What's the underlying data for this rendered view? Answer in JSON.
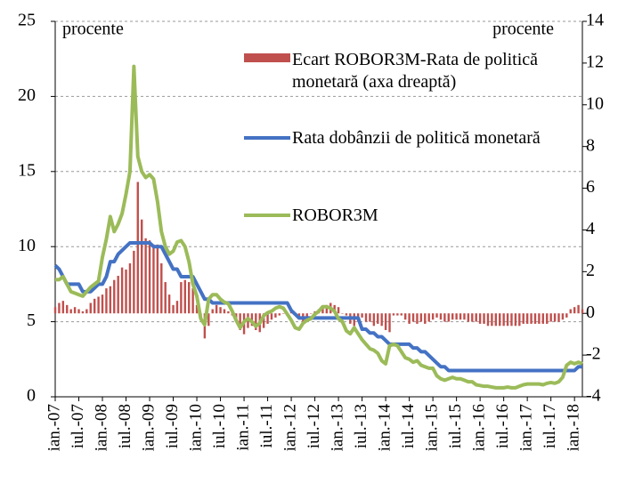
{
  "chart_data": {
    "type": "bar_line",
    "left_unit": "procente",
    "right_unit": "procente",
    "categories": [
      "ian.-07",
      null,
      null,
      null,
      null,
      null,
      "iul.-07",
      null,
      null,
      null,
      null,
      null,
      "ian.-08",
      null,
      null,
      null,
      null,
      null,
      "iul.-08",
      null,
      null,
      null,
      null,
      null,
      "ian.-09",
      null,
      null,
      null,
      null,
      null,
      "iul.-09",
      null,
      null,
      null,
      null,
      null,
      "ian.-10",
      null,
      null,
      null,
      null,
      null,
      "iul.-10",
      null,
      null,
      null,
      null,
      null,
      "ian.-11",
      null,
      null,
      null,
      null,
      null,
      "iul.-11",
      null,
      null,
      null,
      null,
      null,
      "ian.-12",
      null,
      null,
      null,
      null,
      null,
      "iul.-12",
      null,
      null,
      null,
      null,
      null,
      "ian.-13",
      null,
      null,
      null,
      null,
      null,
      "iul.-13",
      null,
      null,
      null,
      null,
      null,
      "ian.-14",
      null,
      null,
      null,
      null,
      null,
      "iul.-14",
      null,
      null,
      null,
      null,
      null,
      "ian.-15",
      null,
      null,
      null,
      null,
      null,
      "iul.-15",
      null,
      null,
      null,
      null,
      null,
      "ian.-16",
      null,
      null,
      null,
      null,
      null,
      "iul.-16",
      null,
      null,
      null,
      null,
      null,
      "ian.-17",
      null,
      null,
      null,
      null,
      null,
      "iul.-17",
      null,
      null,
      null,
      null,
      null,
      "ian.-18",
      null,
      null
    ],
    "series": [
      {
        "name": "Ecart ROBOR3M-Rata de politică monetară (axa dreaptă)",
        "kind": "bar",
        "axis": "y2",
        "color": "#c0504d",
        "values": [
          0.3,
          0.5,
          0.6,
          0.4,
          0.2,
          0.3,
          0.2,
          0.1,
          0.2,
          0.5,
          0.7,
          0.8,
          0.9,
          1.2,
          1.3,
          1.6,
          1.8,
          2.2,
          2.1,
          2.4,
          3.0,
          6.3,
          4.5,
          3.6,
          3.5,
          3.3,
          3.3,
          2.4,
          1.5,
          0.9,
          0.4,
          0.6,
          1.5,
          1.6,
          1.5,
          1.2,
          0.4,
          -0.3,
          -1.2,
          -0.6,
          0.2,
          0.4,
          0.3,
          0.2,
          0.1,
          -0.1,
          -0.4,
          -0.8,
          -1.0,
          -0.7,
          -0.6,
          -0.8,
          -0.9,
          -0.7,
          -0.5,
          -0.3,
          -0.2,
          -0.1,
          0,
          0,
          0.1,
          -0.1,
          -0.3,
          -0.4,
          -0.2,
          0,
          0.1,
          0.2,
          0.3,
          0.4,
          0.5,
          0.4,
          0.3,
          0,
          -0.1,
          -0.5,
          -0.6,
          -0.4,
          -0.2,
          -0.4,
          -0.4,
          -0.6,
          -0.5,
          -0.6,
          -0.8,
          -0.9,
          -0.1,
          -0.1,
          -0.1,
          -0.3,
          -0.5,
          -0.4,
          -0.5,
          -0.4,
          -0.5,
          -0.4,
          -0.3,
          -0.2,
          -0.3,
          -0.4,
          -0.4,
          -0.3,
          -0.3,
          -0.3,
          -0.3,
          -0.4,
          -0.4,
          -0.4,
          -0.5,
          -0.5,
          -0.6,
          -0.6,
          -0.6,
          -0.6,
          -0.6,
          -0.6,
          -0.6,
          -0.6,
          -0.6,
          -0.5,
          -0.5,
          -0.5,
          -0.5,
          -0.5,
          -0.5,
          -0.5,
          -0.4,
          -0.4,
          -0.4,
          -0.3,
          -0.2,
          0.2,
          0.3,
          0.4,
          0.2
        ]
      },
      {
        "name": "Rata dobânzii de politică monetară",
        "kind": "line",
        "axis": "y",
        "color": "#4472c4",
        "values": [
          8.75,
          8.5,
          8.0,
          7.5,
          7.5,
          7.5,
          7.5,
          7.0,
          7.0,
          7.0,
          7.25,
          7.5,
          7.5,
          8.0,
          9.0,
          9.0,
          9.5,
          9.75,
          10.0,
          10.25,
          10.25,
          10.25,
          10.25,
          10.25,
          10.25,
          10.0,
          10.0,
          10.0,
          9.5,
          9.0,
          8.5,
          8.5,
          8.0,
          8.0,
          8.0,
          8.0,
          7.5,
          7.0,
          6.5,
          6.5,
          6.25,
          6.25,
          6.25,
          6.25,
          6.25,
          6.25,
          6.25,
          6.25,
          6.25,
          6.25,
          6.25,
          6.25,
          6.25,
          6.25,
          6.25,
          6.25,
          6.25,
          6.25,
          6.25,
          6.25,
          5.75,
          5.5,
          5.25,
          5.25,
          5.25,
          5.25,
          5.25,
          5.25,
          5.25,
          5.25,
          5.25,
          5.25,
          5.25,
          5.25,
          5.25,
          5.25,
          5.25,
          5.25,
          4.5,
          4.5,
          4.25,
          4.25,
          4.0,
          4.0,
          3.75,
          3.5,
          3.5,
          3.5,
          3.5,
          3.5,
          3.5,
          3.25,
          3.25,
          3.0,
          3.0,
          2.75,
          2.5,
          2.25,
          2.0,
          2.0,
          1.75,
          1.75,
          1.75,
          1.75,
          1.75,
          1.75,
          1.75,
          1.75,
          1.75,
          1.75,
          1.75,
          1.75,
          1.75,
          1.75,
          1.75,
          1.75,
          1.75,
          1.75,
          1.75,
          1.75,
          1.75,
          1.75,
          1.75,
          1.75,
          1.75,
          1.75,
          1.75,
          1.75,
          1.75,
          1.75,
          1.75,
          1.75,
          1.75,
          2.0,
          2.0
        ]
      },
      {
        "name": "ROBOR3M",
        "kind": "line",
        "axis": "y",
        "color": "#9bbb59",
        "values": [
          7.8,
          7.8,
          8.0,
          7.5,
          7.0,
          6.9,
          6.8,
          6.7,
          7.0,
          7.3,
          7.5,
          7.7,
          9.3,
          10.5,
          12.0,
          11.0,
          11.5,
          12.2,
          13.5,
          15.0,
          22.0,
          16.0,
          15.0,
          14.6,
          14.8,
          14.5,
          13.0,
          11.0,
          10.0,
          9.5,
          9.7,
          10.3,
          10.4,
          10.0,
          9.0,
          7.5,
          6.7,
          5.2,
          4.8,
          6.5,
          6.8,
          6.8,
          6.5,
          6.3,
          6.2,
          5.7,
          5.1,
          4.6,
          5.0,
          5.2,
          5.0,
          4.7,
          4.9,
          5.4,
          5.6,
          5.7,
          5.9,
          6.0,
          5.9,
          5.5,
          5.1,
          4.6,
          4.5,
          4.9,
          5.1,
          5.2,
          5.5,
          5.7,
          6.0,
          6.0,
          5.9,
          5.7,
          5.2,
          5.0,
          4.4,
          4.2,
          4.6,
          4.2,
          3.8,
          3.5,
          3.2,
          3.1,
          2.9,
          2.4,
          2.2,
          3.4,
          3.5,
          3.4,
          3.0,
          2.6,
          2.5,
          2.3,
          2.4,
          2.1,
          2.0,
          1.9,
          1.9,
          1.4,
          1.2,
          1.1,
          1.2,
          1.3,
          1.2,
          1.2,
          1.1,
          1.0,
          1.0,
          0.8,
          0.75,
          0.7,
          0.7,
          0.65,
          0.6,
          0.6,
          0.6,
          0.65,
          0.6,
          0.6,
          0.7,
          0.8,
          0.85,
          0.85,
          0.85,
          0.85,
          0.8,
          0.9,
          0.95,
          0.9,
          1.0,
          1.3,
          2.1,
          2.3,
          2.2,
          2.3,
          2.2
        ]
      }
    ],
    "ylim": [
      0,
      25
    ],
    "yticks": [
      0,
      5,
      10,
      15,
      20,
      25
    ],
    "y2lim": [
      -4,
      14
    ],
    "y2ticks": [
      -4,
      -2,
      0,
      2,
      4,
      6,
      8,
      10,
      12,
      14
    ],
    "grid": true
  }
}
